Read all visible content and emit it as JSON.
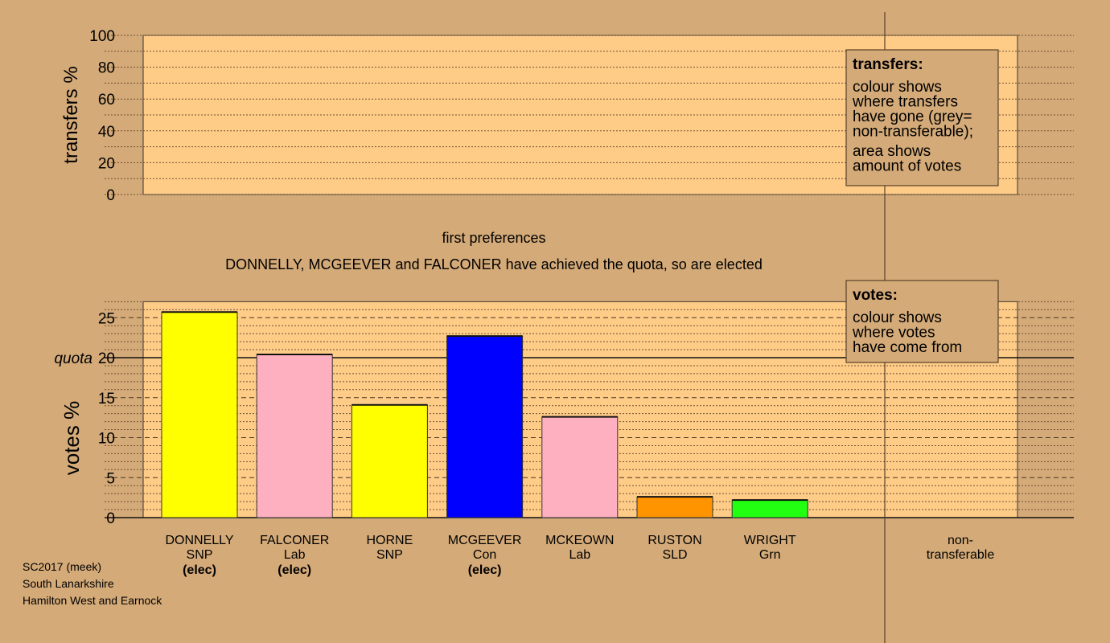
{
  "colors": {
    "background": "#d4aa78",
    "plot": "#ffcc88",
    "grey_box": "#d4aa78"
  },
  "chart_data": [
    {
      "type": "bar",
      "name": "transfers",
      "ylabel": "transfers %",
      "ylim": [
        0,
        100
      ],
      "yticks": [
        0,
        20,
        40,
        60,
        80,
        100
      ],
      "series": [],
      "legend": {
        "placement": "top-right",
        "title": "transfers:",
        "lines1": [
          "colour shows",
          "where transfers",
          "have gone (grey=",
          "non-transferable);"
        ],
        "lines2": [
          "area shows",
          "amount of votes"
        ]
      }
    },
    {
      "type": "bar",
      "name": "votes",
      "title": "first preferences",
      "subtitle": "DONNELLY, MCGEEVER and FALCONER have achieved the quota, so are elected",
      "ylabel": "votes %",
      "ylim": [
        0,
        27
      ],
      "yticks": [
        0,
        5,
        10,
        15,
        20,
        25
      ],
      "quota": 20,
      "quota_label": "quota",
      "categories": [
        {
          "name": "DONNELLY",
          "party": "SNP",
          "status": "(elec)",
          "value": 25.7,
          "color": "#ffff00"
        },
        {
          "name": "FALCONER",
          "party": "Lab",
          "status": "(elec)",
          "value": 20.4,
          "color": "#ffb0c0"
        },
        {
          "name": "HORNE",
          "party": "SNP",
          "status": "",
          "value": 14.1,
          "color": "#ffff00"
        },
        {
          "name": "MCGEEVER",
          "party": "Con",
          "status": "(elec)",
          "value": 22.7,
          "color": "#0000ff"
        },
        {
          "name": "MCKEOWN",
          "party": "Lab",
          "status": "",
          "value": 12.6,
          "color": "#ffb0c0"
        },
        {
          "name": "RUSTON",
          "party": "SLD",
          "status": "",
          "value": 2.6,
          "color": "#ff9400"
        },
        {
          "name": "WRIGHT",
          "party": "Grn",
          "status": "",
          "value": 2.2,
          "color": "#22ff11"
        }
      ],
      "nontransferable_label": [
        "non-",
        "transferable"
      ],
      "legend": {
        "placement": "top-right",
        "title": "votes:",
        "lines1": [
          "colour shows",
          "where votes",
          "have come from"
        ]
      }
    }
  ],
  "footer": [
    "SC2017 (meek)",
    "South Lanarkshire",
    "Hamilton West and Earnock"
  ]
}
